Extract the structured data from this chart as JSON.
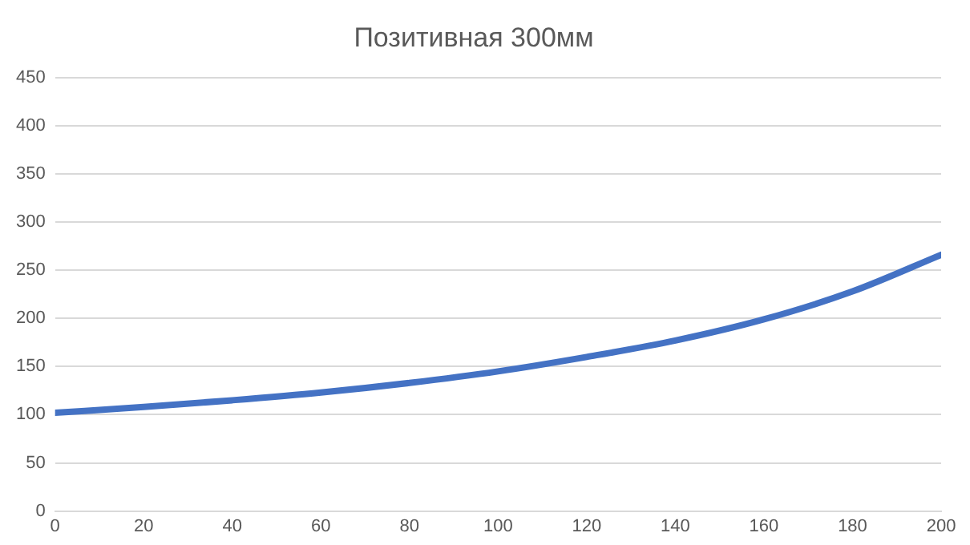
{
  "chart_data": {
    "type": "line",
    "title": "Позитивная 300мм",
    "x": [
      0,
      20,
      40,
      60,
      80,
      100,
      120,
      140,
      160,
      180,
      200
    ],
    "series": [
      {
        "color": "#4472c4",
        "values": [
          102,
          108,
          115,
          123,
          133,
          145,
          160,
          177,
          199,
          228,
          266
        ]
      }
    ],
    "xlim": [
      0,
      200
    ],
    "xticks": [
      0,
      20,
      40,
      60,
      80,
      100,
      120,
      140,
      160,
      180,
      200
    ],
    "ylim": [
      0,
      450
    ],
    "yticks": [
      0,
      50,
      100,
      150,
      200,
      250,
      300,
      350,
      400,
      450
    ],
    "grid": "y",
    "legend": false,
    "marker": "none",
    "line_style": "solid"
  }
}
